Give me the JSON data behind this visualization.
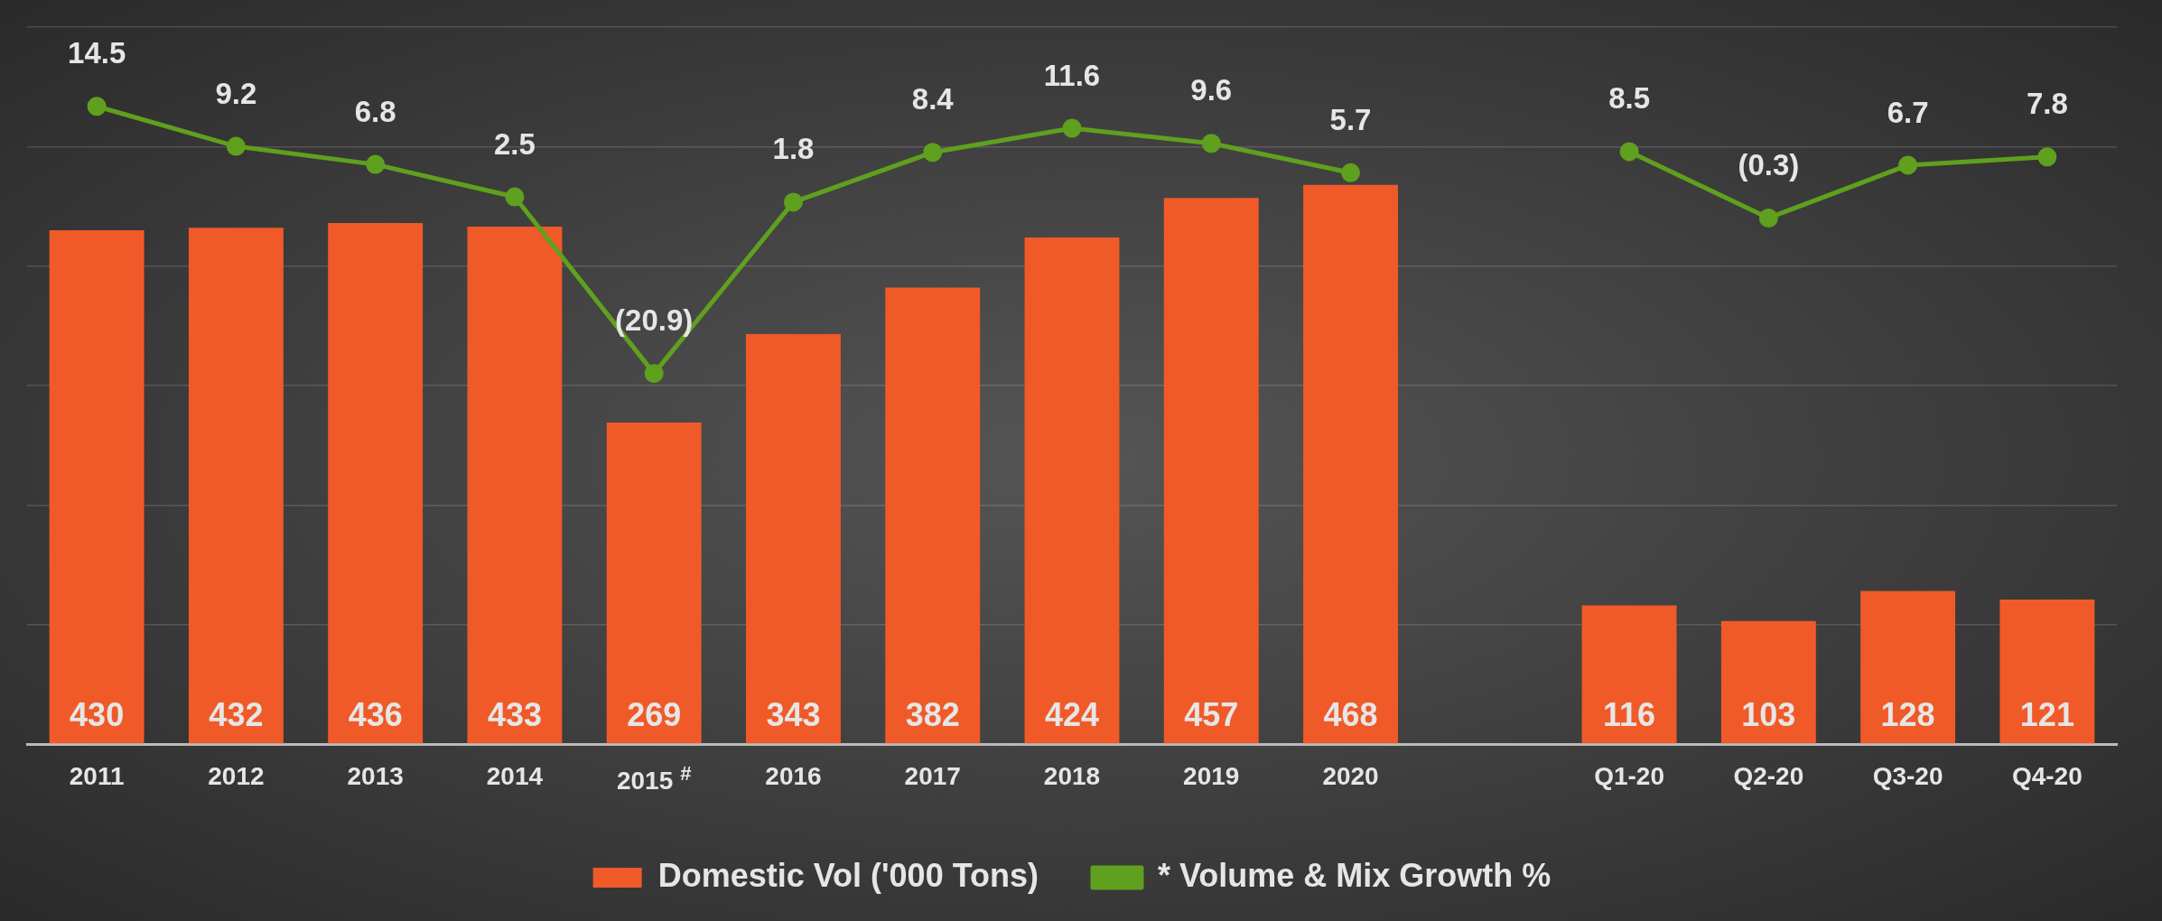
{
  "chart_data": {
    "type": "bar",
    "categories": [
      "2011",
      "2012",
      "2013",
      "2014",
      "2015$^{#}$",
      "2016",
      "2017",
      "2018",
      "2019",
      "2020",
      null,
      "Q1-20",
      "Q2-20",
      "Q3-20",
      "Q4-20"
    ],
    "series": [
      {
        "name": "Domestic Vol ('000 Tons)",
        "color": "#f05a28",
        "values": [
          430,
          432,
          436,
          433,
          269,
          343,
          382,
          424,
          457,
          468,
          null,
          116,
          103,
          128,
          121
        ]
      },
      {
        "name": "* Volume & Mix Growth %",
        "type": "line",
        "axis": "y2",
        "color": "#5fa01e",
        "marker": "circle",
        "values": [
          14.5,
          9.2,
          6.8,
          2.5,
          -20.9,
          1.8,
          8.4,
          11.6,
          9.6,
          5.7,
          null,
          8.5,
          -0.3,
          6.7,
          7.8
        ],
        "value_labels": [
          "14.5",
          "9.2",
          "6.8",
          "2.5",
          "(20.9)",
          "1.8",
          "8.4",
          "11.6",
          "9.6",
          "5.7",
          null,
          "8.5",
          "(0.3)",
          "6.7",
          "7.8"
        ]
      }
    ],
    "data_labels": true,
    "ylim": [
      0,
      600
    ],
    "yticks": [
      {
        "value": 0,
        "label": null
      },
      {
        "value": 100,
        "label": null
      },
      {
        "value": 200,
        "label": null
      },
      {
        "value": 300,
        "label": null
      },
      {
        "value": 400,
        "label": null
      },
      {
        "value": 500,
        "label": null
      },
      {
        "value": 600,
        "label": null
      }
    ],
    "y2lim": [
      -70,
      25
    ],
    "grid": "y",
    "tick_labels": "x",
    "legend": "bottom"
  }
}
